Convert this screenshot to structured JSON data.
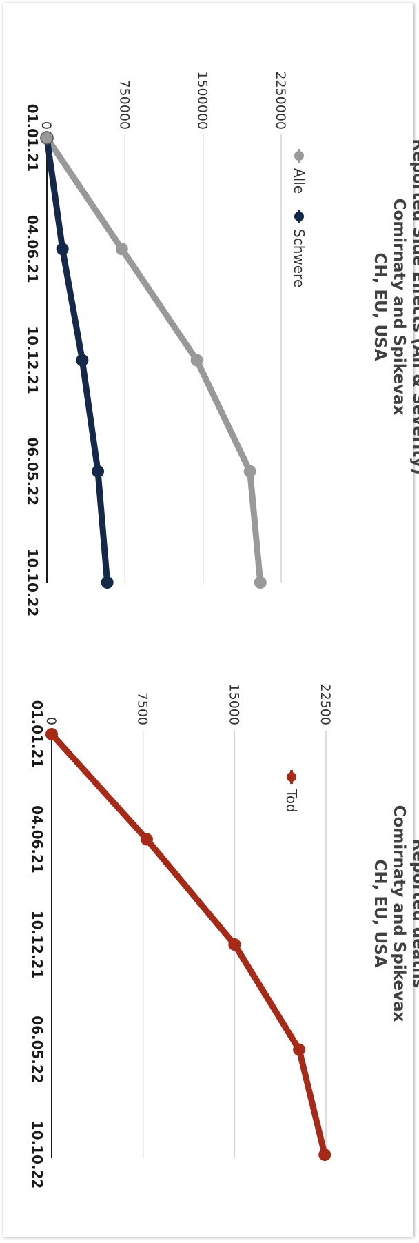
{
  "chart_data": [
    {
      "type": "line",
      "title": [
        "Reported Side Effects (All & Severity)",
        "Comirnaty and Spikevax",
        "CH, EU, USA"
      ],
      "categories": [
        "01.01.21",
        "04.06.21",
        "10.12.21",
        "06.05.22",
        "10.10.22"
      ],
      "y_ticks": [
        "0",
        "750000",
        "1500000",
        "2250000"
      ],
      "ylim": [
        0,
        2250000
      ],
      "grid": true,
      "legend_position": "top",
      "series": [
        {
          "name": "Alle",
          "color": "#999999",
          "values": [
            0,
            720000,
            1440000,
            1950000,
            2050000
          ]
        },
        {
          "name": "Schwere",
          "color": "#14284a",
          "values": [
            0,
            150000,
            340000,
            490000,
            580000
          ]
        }
      ]
    },
    {
      "type": "line",
      "title": [
        "Reported deaths",
        "Comirnaty and Spikevax",
        "CH, EU, USA"
      ],
      "categories": [
        "01.01.21",
        "04.06.21",
        "10.12.21",
        "06.05.22",
        "10.10.22"
      ],
      "y_ticks": [
        "0",
        "7500",
        "15000",
        "22500"
      ],
      "ylim": [
        0,
        22500
      ],
      "grid": true,
      "legend_position": "top",
      "series": [
        {
          "name": "Tod",
          "color": "#a52a18",
          "values": [
            0,
            7800,
            15000,
            20300,
            22400
          ]
        }
      ]
    }
  ]
}
